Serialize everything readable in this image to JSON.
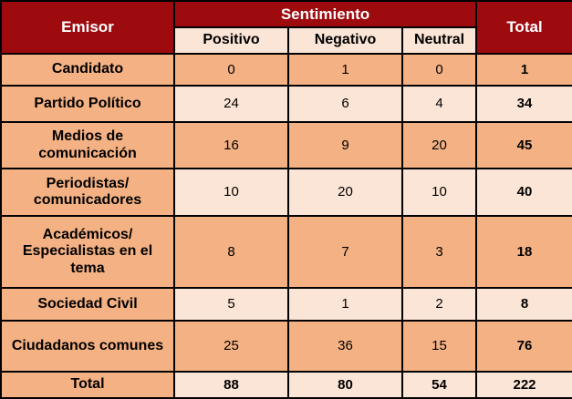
{
  "colors": {
    "header_bg": "#9E0B0F",
    "header_text": "#FFFFFF",
    "row_orange": "#F4B183",
    "row_peach": "#FBE5D6",
    "border": "#000000",
    "body_text": "#000000"
  },
  "table": {
    "header": {
      "emisor": "Emisor",
      "sentimiento": "Sentimiento",
      "positivo": "Positivo",
      "negativo": "Negativo",
      "neutral": "Neutral",
      "total": "Total"
    },
    "rows": [
      {
        "label": "Candidato",
        "positivo": "0",
        "negativo": "1",
        "neutral": "0",
        "total": "1"
      },
      {
        "label": "Partido Político",
        "positivo": "24",
        "negativo": "6",
        "neutral": "4",
        "total": "34"
      },
      {
        "label": "Medios de comunicación",
        "positivo": "16",
        "negativo": "9",
        "neutral": "20",
        "total": "45"
      },
      {
        "label": "Periodistas/ comunicadores",
        "positivo": "10",
        "negativo": "20",
        "neutral": "10",
        "total": "40"
      },
      {
        "label": "Académicos/ Especialistas en el tema",
        "positivo": "8",
        "negativo": "7",
        "neutral": "3",
        "total": "18"
      },
      {
        "label": "Sociedad Civil",
        "positivo": "5",
        "negativo": "1",
        "neutral": "2",
        "total": "8"
      },
      {
        "label": "Ciudadanos comunes",
        "positivo": "25",
        "negativo": "36",
        "neutral": "15",
        "total": "76"
      },
      {
        "label": "Total",
        "positivo": "88",
        "negativo": "80",
        "neutral": "54",
        "total": "222"
      }
    ]
  },
  "chart_data": {
    "type": "table",
    "title": "",
    "columns": [
      "Emisor",
      "Positivo",
      "Negativo",
      "Neutral",
      "Total"
    ],
    "column_group": {
      "label": "Sentimiento",
      "spans": [
        "Positivo",
        "Negativo",
        "Neutral"
      ]
    },
    "rows": [
      [
        "Candidato",
        0,
        1,
        0,
        1
      ],
      [
        "Partido Político",
        24,
        6,
        4,
        34
      ],
      [
        "Medios de comunicación",
        16,
        9,
        20,
        45
      ],
      [
        "Periodistas/comunicadores",
        10,
        20,
        10,
        40
      ],
      [
        "Académicos/Especialistas en el tema",
        8,
        7,
        3,
        18
      ],
      [
        "Sociedad Civil",
        5,
        1,
        2,
        8
      ],
      [
        "Ciudadanos comunes",
        25,
        36,
        15,
        76
      ]
    ],
    "totals_row": [
      "Total",
      88,
      80,
      54,
      222
    ]
  }
}
